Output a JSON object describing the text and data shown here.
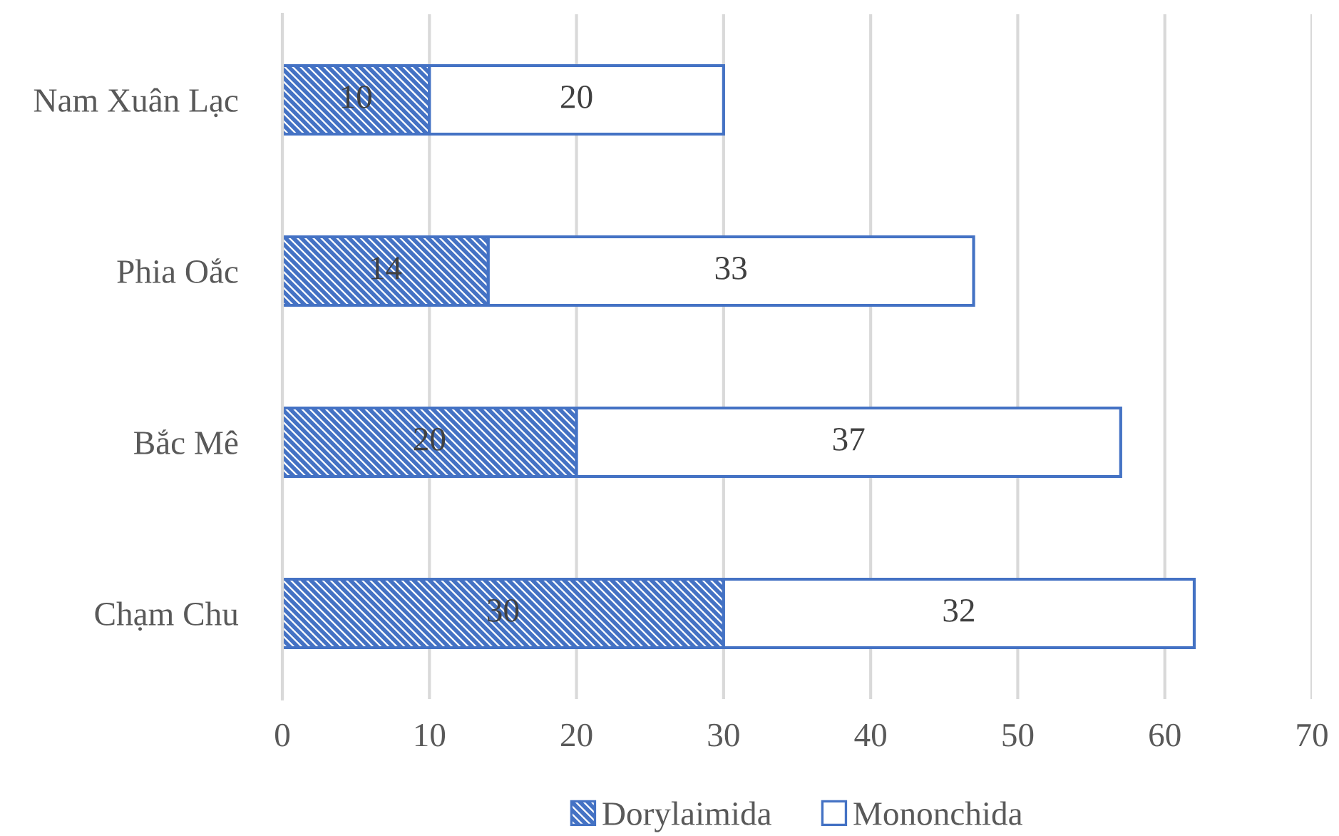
{
  "chart_data": {
    "type": "bar",
    "orientation": "horizontal",
    "stacked": true,
    "categories": [
      "Nam Xuân Lạc",
      "Phia Oắc",
      "Bắc Mê",
      "Chạm Chu"
    ],
    "series": [
      {
        "name": "Dorylaimida",
        "color": "#4472c4",
        "values": [
          10,
          14,
          20,
          30
        ]
      },
      {
        "name": "Mononchida",
        "color": "#4472c4",
        "values": [
          20,
          33,
          37,
          32
        ]
      }
    ],
    "xlim": [
      0,
      70
    ],
    "xticks": [
      0,
      10,
      20,
      30,
      40,
      50,
      60,
      70
    ],
    "grid": "x",
    "legend": "bottom",
    "data_labels": true
  }
}
